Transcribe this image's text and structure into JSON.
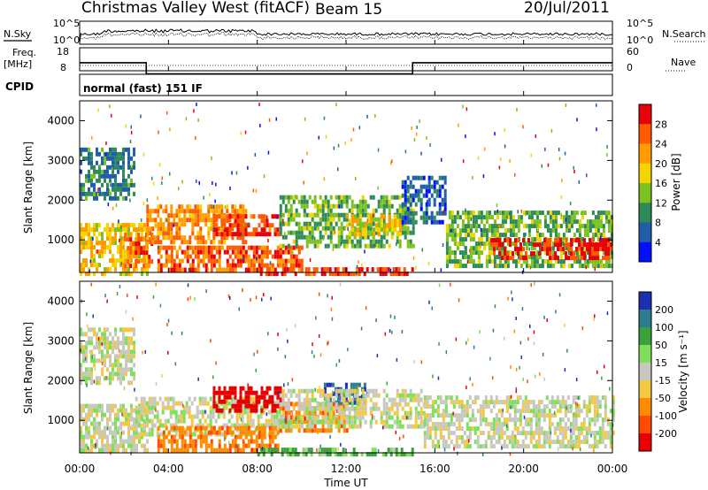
{
  "header": {
    "station": "Christmas Valley West (fitACF)",
    "beam": "Beam 15",
    "date": "20/Jul/2011"
  },
  "noise_panel": {
    "left_label": "N.Sky",
    "right_label": "N.Search",
    "ticks": [
      "10^5",
      "10^0"
    ]
  },
  "freq_panel": {
    "left_label_1": "Freq.",
    "left_label_2": "[MHz]",
    "left_ticks": [
      "18",
      "8"
    ],
    "right_ticks": [
      "60",
      "0"
    ],
    "right_label": "Nave"
  },
  "cpid_panel": {
    "label": "CPID",
    "mode": "normal (fast) 151 IF"
  },
  "power_panel": {
    "ylabel": "Slant Range [km]",
    "yticks": [
      "4000",
      "3000",
      "2000",
      "1000"
    ],
    "colorbar_label": "Power [dB]",
    "colorbar_ticks": [
      "28",
      "24",
      "20",
      "16",
      "12",
      "8",
      "4"
    ],
    "colors": [
      "#e8000b",
      "#ff5a00",
      "#ff9d00",
      "#f5d400",
      "#7cc21e",
      "#2e8b57",
      "#1f5fa8",
      "#0010ff"
    ]
  },
  "velocity_panel": {
    "ylabel": "Slant Range [km]",
    "yticks": [
      "4000",
      "3000",
      "2000",
      "1000"
    ],
    "colorbar_label": "Velocity [m s⁻¹]",
    "colorbar_ticks": [
      "200",
      "100",
      "50",
      "15",
      "-15",
      "-50",
      "-100",
      "-200"
    ],
    "colors": [
      "#1b2fb0",
      "#2e7d8c",
      "#3aa23a",
      "#7ee05a",
      "#c8c8c0",
      "#f5c842",
      "#ff8c00",
      "#ff4a00",
      "#e80000"
    ]
  },
  "x_axis": {
    "ticks": [
      "00:00",
      "04:00",
      "08:00",
      "12:00",
      "16:00",
      "20:00",
      "00:00"
    ],
    "label": "Time UT"
  },
  "chart_data": [
    {
      "type": "line",
      "name": "noise",
      "x": [
        "00:00",
        "04:00",
        "08:00",
        "12:00",
        "16:00",
        "20:00",
        "24:00"
      ],
      "series": [
        {
          "values": [
            10,
            30,
            12,
            8,
            8,
            9,
            9
          ]
        },
        {
          "values": [
            8,
            10,
            9,
            7,
            7,
            8,
            8
          ]
        }
      ],
      "ylog": true
    },
    {
      "type": "line",
      "name": "frequency",
      "x": [
        "00:00",
        "03:00",
        "03:01",
        "15:00",
        "15:01",
        "24:00"
      ],
      "series": [
        {
          "values": [
            11.5,
            11.5,
            10.5,
            10.5,
            11.5,
            11.5
          ]
        }
      ],
      "ylim": [
        8,
        18
      ]
    },
    {
      "type": "heatmap",
      "name": "power",
      "xlim": [
        "00:00",
        "24:00"
      ],
      "ylim": [
        180,
        4500
      ],
      "zlim": [
        0,
        30
      ],
      "patches": [
        {
          "t0": 0.0,
          "t1": 3.0,
          "r0": 200,
          "r1": 1500,
          "p": 18
        },
        {
          "t0": 0.0,
          "t1": 2.5,
          "r0": 2100,
          "r1": 3400,
          "p": 8
        },
        {
          "t0": 2.0,
          "t1": 3.2,
          "r0": 400,
          "r1": 1200,
          "p": 24
        },
        {
          "t0": 3.0,
          "t1": 7.5,
          "r0": 1000,
          "r1": 2000,
          "p": 22
        },
        {
          "t0": 3.5,
          "t1": 10.0,
          "r0": 300,
          "r1": 900,
          "p": 24
        },
        {
          "t0": 6.0,
          "t1": 9.0,
          "r0": 1200,
          "r1": 1700,
          "p": 26
        },
        {
          "t0": 9.0,
          "t1": 15.0,
          "r0": 900,
          "r1": 2200,
          "p": 12
        },
        {
          "t0": 12.0,
          "t1": 14.5,
          "r0": 1200,
          "r1": 1700,
          "p": 18
        },
        {
          "t0": 14.5,
          "t1": 16.5,
          "r0": 1500,
          "r1": 2700,
          "p": 6
        },
        {
          "t0": 16.5,
          "t1": 24.0,
          "r0": 400,
          "r1": 1800,
          "p": 12
        },
        {
          "t0": 18.5,
          "t1": 24.0,
          "r0": 600,
          "r1": 1100,
          "p": 28
        },
        {
          "t0": 8.0,
          "t1": 15.0,
          "r0": 200,
          "r1": 400,
          "p": 26
        }
      ]
    },
    {
      "type": "heatmap",
      "name": "velocity",
      "xlim": [
        "00:00",
        "24:00"
      ],
      "ylim": [
        180,
        4500
      ],
      "zlim": [
        -200,
        200
      ],
      "patches": [
        {
          "t0": 0.0,
          "t1": 3.0,
          "r0": 300,
          "r1": 1500,
          "v": 0
        },
        {
          "t0": 0.0,
          "t1": 2.5,
          "r0": 2000,
          "r1": 3400,
          "v": 0
        },
        {
          "t0": 2.5,
          "t1": 9.0,
          "r0": 700,
          "r1": 1700,
          "v": 0
        },
        {
          "t0": 3.5,
          "t1": 9.0,
          "r0": 300,
          "r1": 900,
          "v": -60
        },
        {
          "t0": 6.0,
          "t1": 9.0,
          "r0": 1300,
          "r1": 1900,
          "v": -180
        },
        {
          "t0": 9.0,
          "t1": 12.0,
          "r0": 800,
          "r1": 1500,
          "v": -60
        },
        {
          "t0": 11.0,
          "t1": 13.0,
          "r0": 1500,
          "r1": 2000,
          "v": 150
        },
        {
          "t0": 9.0,
          "t1": 15.5,
          "r0": 900,
          "r1": 1900,
          "v": 0
        },
        {
          "t0": 15.5,
          "t1": 24.0,
          "r0": 400,
          "r1": 1700,
          "v": 0
        },
        {
          "t0": 8.0,
          "t1": 15.0,
          "r0": 200,
          "r1": 400,
          "v": 40
        }
      ]
    }
  ]
}
